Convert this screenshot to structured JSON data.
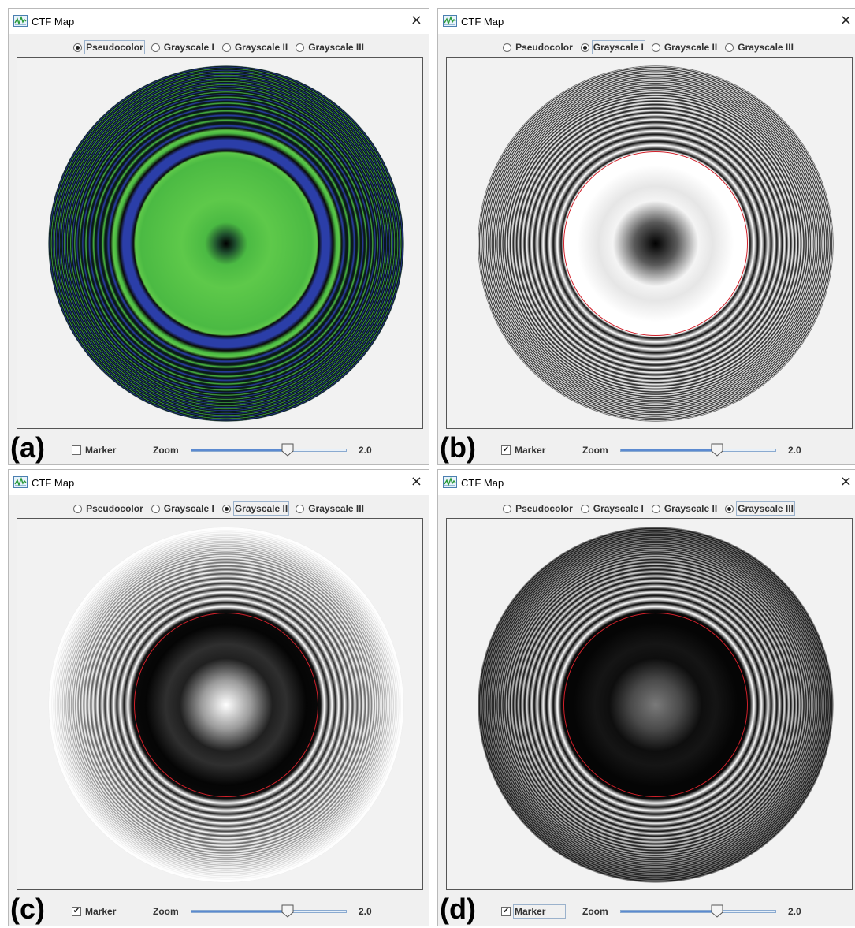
{
  "panels": [
    {
      "letter": "(a)",
      "title": "CTF Map",
      "close_glyph": "×",
      "modes": [
        "Pseudocolor",
        "Grayscale I",
        "Grayscale II",
        "Grayscale III"
      ],
      "selected_mode": 0,
      "marker_label": "Marker",
      "marker_checked": false,
      "zoom_label": "Zoom",
      "zoom_value": "2.0",
      "zoom_fraction": 0.62,
      "colors": {
        "center": "#000000",
        "band_light": "#5ec94a",
        "band_mid": "#4bba43",
        "band_dark": "#2b3ea8",
        "edge": "#0d2a28"
      }
    },
    {
      "letter": "(b)",
      "title": "CTF Map",
      "close_glyph": "×",
      "modes": [
        "Pseudocolor",
        "Grayscale I",
        "Grayscale II",
        "Grayscale III"
      ],
      "selected_mode": 1,
      "marker_label": "Marker",
      "marker_checked": true,
      "zoom_label": "Zoom",
      "zoom_value": "2.0",
      "zoom_fraction": 0.62,
      "colors": {
        "center": "#000000",
        "band_light": "#ffffff",
        "band_dark": "#111111",
        "marker": "#d0202a"
      }
    },
    {
      "letter": "(c)",
      "title": "CTF Map",
      "close_glyph": "×",
      "modes": [
        "Pseudocolor",
        "Grayscale I",
        "Grayscale II",
        "Grayscale III"
      ],
      "selected_mode": 2,
      "marker_label": "Marker",
      "marker_checked": true,
      "zoom_label": "Zoom",
      "zoom_value": "2.0",
      "zoom_fraction": 0.62,
      "colors": {
        "center": "#ffffff",
        "band_light": "#ffffff",
        "band_dark": "#111111",
        "marker": "#d0202a"
      }
    },
    {
      "letter": "(d)",
      "title": "CTF Map",
      "close_glyph": "×",
      "modes": [
        "Pseudocolor",
        "Grayscale I",
        "Grayscale II",
        "Grayscale III"
      ],
      "selected_mode": 3,
      "marker_label": "Marker",
      "marker_checked": true,
      "zoom_label": "Zoom",
      "zoom_value": "2.0",
      "zoom_fraction": 0.62,
      "colors": {
        "center": "#7a7a7a",
        "band_light": "#ffffff",
        "band_dark": "#0a0a0a",
        "marker": "#d0202a"
      }
    }
  ],
  "icons": {
    "app": "ctf-chart-icon",
    "close": "close-icon",
    "slider_thumb": "slider-thumb-icon",
    "check": "check-icon"
  }
}
